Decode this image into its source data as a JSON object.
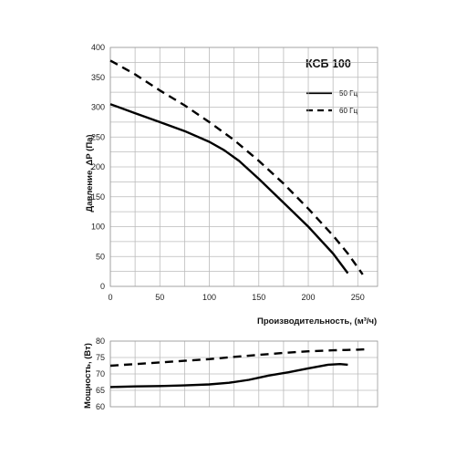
{
  "chart_data": [
    {
      "type": "line",
      "title": "КСБ 100",
      "xlabel": "Производительность, (м³/ч)",
      "ylabel": "Давление, ΔP (Па)",
      "xlim": [
        0,
        270
      ],
      "ylim": [
        0,
        400
      ],
      "xticks": [
        0,
        50,
        100,
        150,
        200,
        250
      ],
      "yticks": [
        0,
        50,
        100,
        150,
        200,
        250,
        300,
        350,
        400
      ],
      "grid": true,
      "legend_position": "top-right",
      "series": [
        {
          "name": "50 Гц",
          "style": "solid",
          "color": "#000000",
          "x": [
            0,
            25,
            50,
            75,
            100,
            115,
            130,
            150,
            175,
            200,
            225,
            240
          ],
          "y": [
            305,
            290,
            275,
            260,
            242,
            228,
            210,
            180,
            140,
            100,
            55,
            22
          ]
        },
        {
          "name": "60 Гц",
          "style": "dashed",
          "color": "#000000",
          "x": [
            0,
            25,
            50,
            75,
            100,
            125,
            150,
            175,
            200,
            225,
            240,
            255
          ],
          "y": [
            378,
            355,
            328,
            303,
            275,
            245,
            210,
            172,
            130,
            85,
            55,
            20
          ]
        }
      ]
    },
    {
      "type": "line",
      "title": "",
      "xlabel": "",
      "ylabel": "Мощность, (Вт)",
      "xlim": [
        0,
        270
      ],
      "ylim": [
        60,
        80
      ],
      "yticks": [
        60,
        65,
        70,
        75,
        80
      ],
      "grid": true,
      "series": [
        {
          "name": "50 Гц",
          "style": "solid",
          "color": "#000000",
          "x": [
            0,
            25,
            50,
            75,
            100,
            120,
            140,
            160,
            180,
            200,
            220,
            232,
            240
          ],
          "y": [
            66,
            66.2,
            66.3,
            66.5,
            66.8,
            67.3,
            68.2,
            69.5,
            70.5,
            71.7,
            72.8,
            73,
            72.8
          ]
        },
        {
          "name": "60 Гц",
          "style": "dashed",
          "color": "#000000",
          "x": [
            0,
            25,
            50,
            75,
            100,
            125,
            150,
            175,
            200,
            225,
            250,
            257
          ],
          "y": [
            72.5,
            73,
            73.5,
            74,
            74.5,
            75.2,
            75.8,
            76.4,
            76.9,
            77.2,
            77.4,
            77.5
          ]
        }
      ]
    }
  ]
}
